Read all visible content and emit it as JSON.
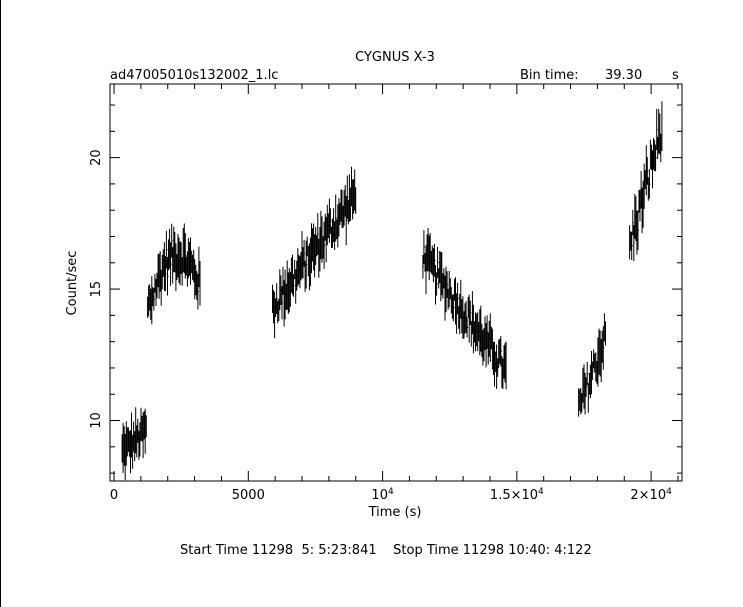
{
  "chart_data": {
    "type": "line",
    "title": "CYGNUS X-3",
    "file_label": "ad47005010s132002_1.lc",
    "bin_time_label": "Bin time:",
    "bin_time_value": "39.30",
    "bin_time_unit": "s",
    "xlabel": "Time (s)",
    "ylabel": "Count/sec",
    "footer": "Start Time 11298  5: 5:23:841    Stop Time 11298 10:40: 4:122",
    "xlim": [
      -150,
      21150
    ],
    "ylim": [
      7.7,
      22.8
    ],
    "x_ticks": [
      {
        "value": 0,
        "label": "0"
      },
      {
        "value": 5000,
        "label": "5000"
      },
      {
        "value": 10000,
        "label": "10",
        "exp": "4"
      },
      {
        "value": 15000,
        "label": "1.5×10",
        "exp": "4"
      },
      {
        "value": 20000,
        "label": "2×10",
        "exp": "4"
      }
    ],
    "y_ticks": [
      {
        "value": 10,
        "label": "10"
      },
      {
        "value": 15,
        "label": "15"
      },
      {
        "value": 20,
        "label": "20"
      }
    ],
    "segments": [
      {
        "x": [
          300,
          1200
        ],
        "y0": [
          8.8,
          9.6
        ],
        "noise": 0.9
      },
      {
        "x": [
          1250,
          3200
        ],
        "y0": [
          14.2,
          15.2
        ],
        "noise": 1.2,
        "bump": 1.6
      },
      {
        "x": [
          5900,
          9000
        ],
        "y0": [
          14.3,
          18.6
        ],
        "noise": 1.1
      },
      {
        "x": [
          11500,
          14600
        ],
        "y0": [
          16.3,
          11.9
        ],
        "noise": 1.0
      },
      {
        "x": [
          17300,
          18300
        ],
        "y0": [
          10.4,
          13.2
        ],
        "noise": 1.1
      },
      {
        "x": [
          19200,
          20400
        ],
        "y0": [
          16.6,
          21.2
        ],
        "noise": 1.4
      }
    ]
  }
}
